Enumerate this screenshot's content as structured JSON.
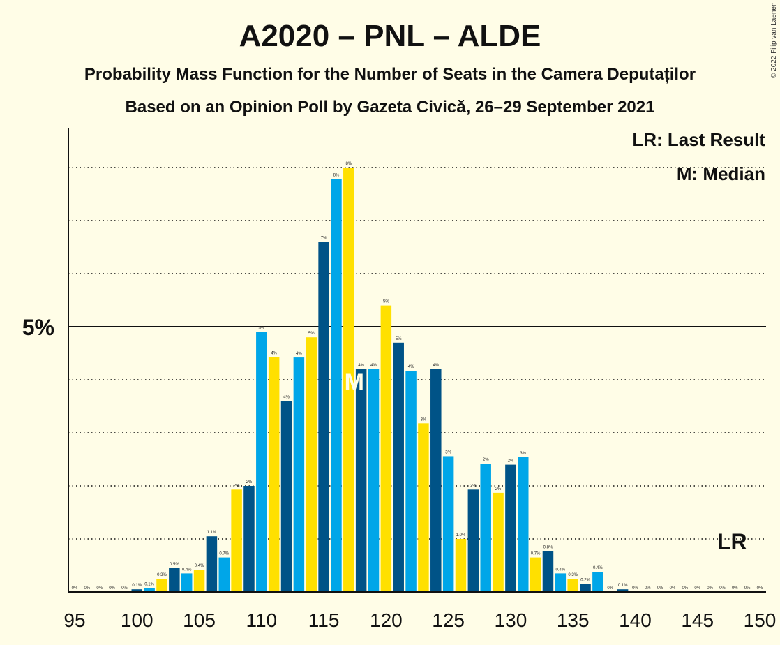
{
  "chart_data": {
    "type": "bar",
    "title": "A2020 – PNL – ALDE",
    "subtitle_1": "Probability Mass Function for the Number of Seats in the Camera Deputaților",
    "subtitle_2": "Based on an Opinion Poll by Gazeta Civică, 26–29 September 2021",
    "copyright": "© 2022 Filip van Laenen",
    "legend": {
      "last_result": "LR: Last Result",
      "median": "M: Median",
      "placement": "top-right"
    },
    "y_tick_label": "5%",
    "y_tick_value": 5,
    "ylim": [
      0,
      8.8
    ],
    "grid": "dotted, every 1%",
    "x_ticks": [
      95,
      100,
      105,
      110,
      115,
      120,
      125,
      130,
      135,
      140,
      145,
      150
    ],
    "x": [
      95,
      96,
      97,
      98,
      99,
      100,
      101,
      102,
      103,
      104,
      105,
      106,
      107,
      108,
      109,
      110,
      111,
      112,
      113,
      114,
      115,
      116,
      117,
      118,
      119,
      120,
      121,
      122,
      123,
      124,
      125,
      126,
      127,
      128,
      129,
      130,
      131,
      132,
      133,
      134,
      135,
      136,
      137,
      138,
      139,
      140,
      141,
      142,
      143,
      144,
      145,
      146,
      147,
      148,
      149,
      150
    ],
    "values": [
      0,
      0,
      0,
      0,
      0,
      0.05,
      0.07,
      0.25,
      0.45,
      0.35,
      0.42,
      1.05,
      0.65,
      1.93,
      2.0,
      4.9,
      4.43,
      3.6,
      4.42,
      4.8,
      6.6,
      7.78,
      8.0,
      4.2,
      4.2,
      5.4,
      4.7,
      4.17,
      3.18,
      4.2,
      2.56,
      1.0,
      1.93,
      2.42,
      1.87,
      2.4,
      2.54,
      0.65,
      0.77,
      0.35,
      0.25,
      0.15,
      0.38,
      0,
      0.05,
      0,
      0,
      0,
      0,
      0,
      0,
      0,
      0,
      0,
      0,
      0
    ],
    "labels": [
      "0%",
      "0%",
      "0%",
      "0%",
      "0%",
      "0.1%",
      "0.1%",
      "0.3%",
      "0.5%",
      "0.4%",
      "0.4%",
      "1.1%",
      "0.7%",
      "2%",
      "2%",
      "5%",
      "4%",
      "4%",
      "4%",
      "5%",
      "7%",
      "8%",
      "8%",
      "4%",
      "4%",
      "5%",
      "5%",
      "4%",
      "3%",
      "4%",
      "3%",
      "1.0%",
      "2%",
      "2%",
      "2%",
      "2%",
      "3%",
      "0.7%",
      "0.8%",
      "0.4%",
      "0.3%",
      "0.2%",
      "0.4%",
      "0%",
      "0.1%",
      "0%",
      "0%",
      "0%",
      "0%",
      "0%",
      "0%",
      "0%",
      "0%",
      "0%",
      "0%",
      "0%"
    ],
    "median_seat": 117,
    "median_label": "M",
    "last_result_seat": 148,
    "last_result_label": "LR",
    "colors": {
      "dark_blue": "#005387",
      "light_blue": "#00A6E8",
      "yellow": "#FFE000",
      "background": "#FFFDE7"
    }
  }
}
